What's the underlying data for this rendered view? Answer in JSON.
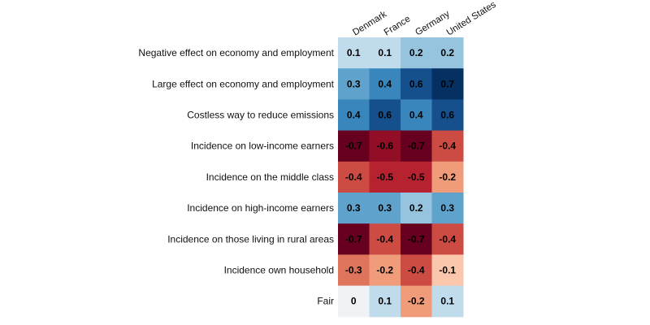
{
  "chart_data": {
    "type": "heatmap",
    "title": "",
    "xlabel": "",
    "ylabel": "",
    "columns": [
      "Denmark",
      "France",
      "Germany",
      "United States"
    ],
    "rows": [
      "Negative effect on economy and employment",
      "Large effect on economy and employment",
      "Costless way to reduce emissions",
      "Incidence on low-income earners",
      "Incidence on the middle class",
      "Incidence on high-income earners",
      "Incidence on those living in rural areas",
      "Incidence own household",
      "Fair"
    ],
    "values": [
      [
        0.1,
        0.1,
        0.2,
        0.2
      ],
      [
        0.3,
        0.4,
        0.6,
        0.7
      ],
      [
        0.4,
        0.6,
        0.4,
        0.6
      ],
      [
        -0.7,
        -0.6,
        -0.7,
        -0.4
      ],
      [
        -0.4,
        -0.5,
        -0.5,
        -0.2
      ],
      [
        0.3,
        0.3,
        0.2,
        0.3
      ],
      [
        -0.7,
        -0.4,
        -0.7,
        -0.4
      ],
      [
        -0.3,
        -0.2,
        -0.4,
        -0.1
      ],
      [
        0,
        0.1,
        -0.2,
        0.1
      ]
    ],
    "value_labels": [
      [
        "0.1",
        "0.1",
        "0.2",
        "0.2"
      ],
      [
        "0.3",
        "0.4",
        "0.6",
        "0.7"
      ],
      [
        "0.4",
        "0.6",
        "0.4",
        "0.6"
      ],
      [
        "-0.7",
        "-0.6",
        "-0.7",
        "-0.4"
      ],
      [
        "-0.4",
        "-0.5",
        "-0.5",
        "-0.2"
      ],
      [
        "0.3",
        "0.3",
        "0.2",
        "0.3"
      ],
      [
        "-0.7",
        "-0.4",
        "-0.7",
        "-0.4"
      ],
      [
        "-0.3",
        "-0.2",
        "-0.4",
        "-0.1"
      ],
      [
        "0",
        "0.1",
        "-0.2",
        "0.1"
      ]
    ],
    "color_scale": "RdBu diverging (red = negative, blue = positive)",
    "value_range": [
      -0.7,
      0.7
    ],
    "grid": false,
    "legend": "none"
  },
  "colors": {
    "negative_max": "#67001f",
    "negative_mid": "#d6604d",
    "neutral": "#f7f7f7",
    "positive_mid": "#4393c3",
    "positive_max": "#053061"
  }
}
